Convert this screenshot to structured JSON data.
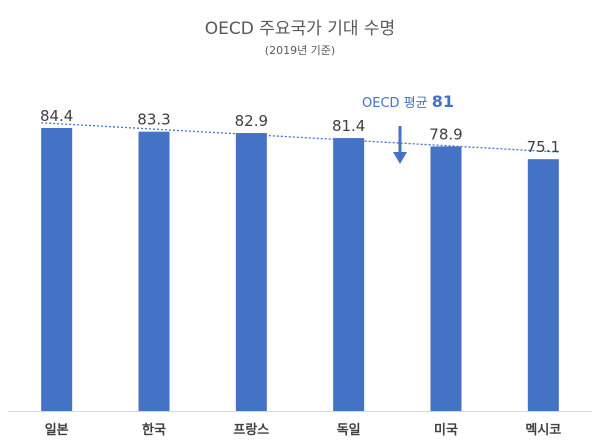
{
  "chart_data": {
    "type": "bar",
    "title": "OECD 주요국가 기대 수명",
    "subtitle": "(2019년 기준)",
    "categories": [
      "일본",
      "한국",
      "프랑스",
      "독일",
      "미국",
      "멕시코"
    ],
    "values": [
      84.4,
      83.3,
      82.9,
      81.4,
      78.9,
      75.1
    ],
    "value_labels": [
      "84.4",
      "83.3",
      "82.9",
      "81.4",
      "78.9",
      "75.1"
    ],
    "annotation": {
      "prefix": "OECD 평균 ",
      "value": "81"
    },
    "trendline": true,
    "ylim": [
      0,
      90
    ],
    "xlabel": "",
    "ylabel": "",
    "grid": false,
    "colors": {
      "bar": "#4472C4",
      "trendline": "#4472C4",
      "annotation": "#4472C4",
      "text": "#404040",
      "axis": "#D9D9D9"
    }
  }
}
